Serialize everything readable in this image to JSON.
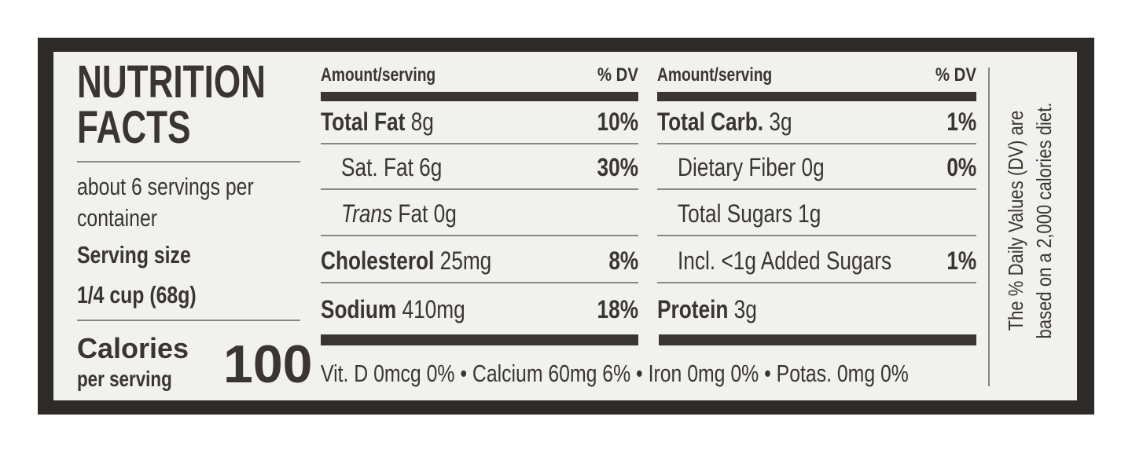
{
  "panel": {
    "title": "NUTRITION FACTS",
    "servings": "about 6 servings per container",
    "serving_size_label": "Serving size",
    "serving_size": "1/4 cup (68g)",
    "calories_label": "Calories",
    "calories_sub": "per serving",
    "calories": "100"
  },
  "left": {
    "header": {
      "amount": "Amount/serving",
      "dv": "% DV"
    },
    "rows": [
      {
        "name": "Total Fat",
        "amount": "8g",
        "dv": "10%"
      },
      {
        "name": "Sat. Fat",
        "amount": "6g",
        "dv": "30%"
      },
      {
        "name_italic": "Trans",
        "name": "Fat",
        "amount": "0g"
      },
      {
        "name": "Cholesterol",
        "amount": "25mg",
        "dv": "8%"
      },
      {
        "name": "Sodium",
        "amount": "410mg",
        "dv": "18%"
      }
    ]
  },
  "right": {
    "header": {
      "amount": "Amount/serving",
      "dv": "% DV"
    },
    "rows": [
      {
        "name": "Total Carb.",
        "amount": "3g",
        "dv": "1%"
      },
      {
        "name": "Dietary Fiber",
        "amount": "0g",
        "dv": "0%"
      },
      {
        "name": "Total Sugars",
        "amount": "1g"
      },
      {
        "name": "Incl. <1g Added Sugars",
        "dv": "1%"
      },
      {
        "name": "Protein",
        "amount": "3g"
      }
    ]
  },
  "footer": "Vit. D 0mcg 0% • Calcium 60mg 6% • Iron  0mg 0% • Potas. 0mg 0%",
  "note": "The % Daily Values (DV) are based on a 2,000 calories diet."
}
